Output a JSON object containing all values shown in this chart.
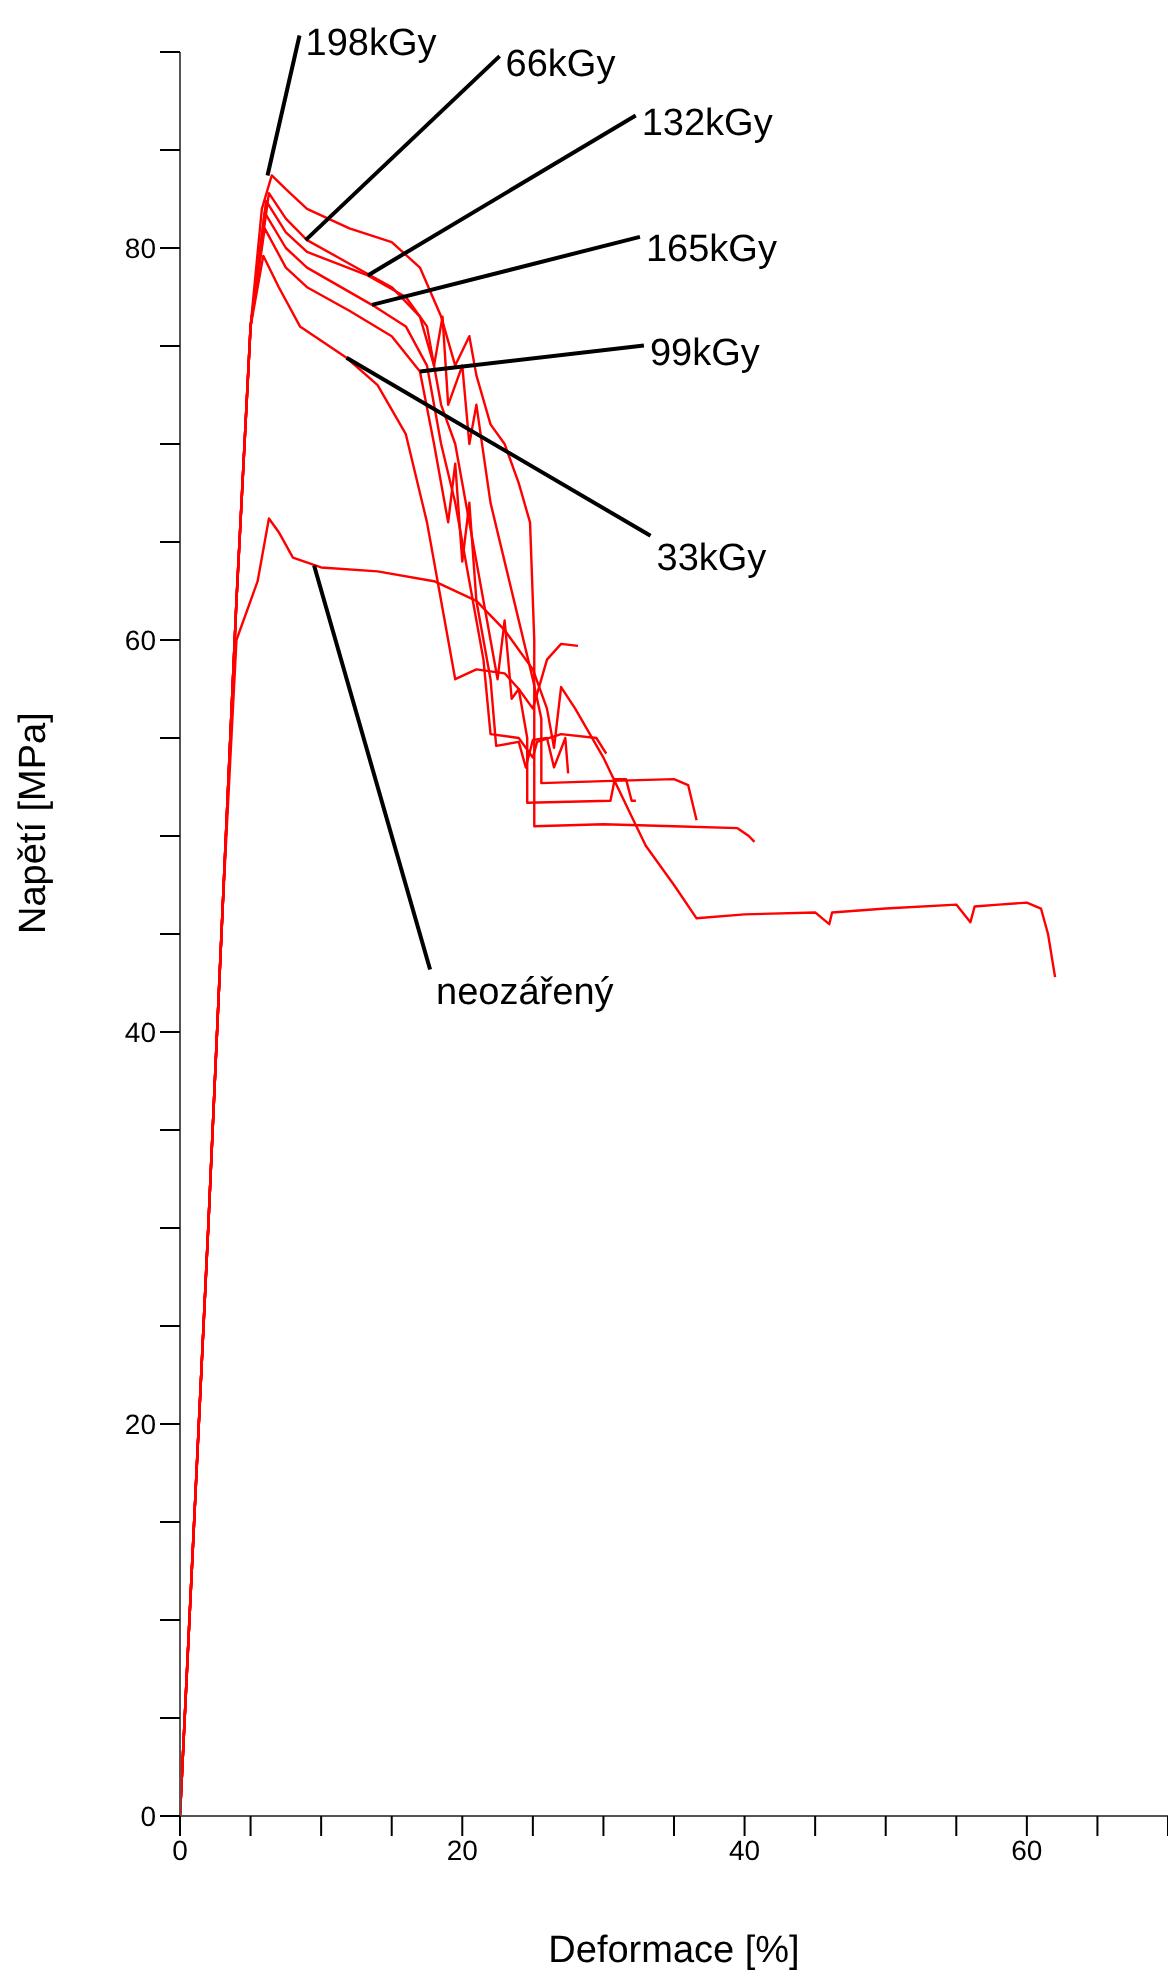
{
  "chart_data": {
    "type": "line",
    "xlabel": "Deformace [%]",
    "ylabel": "Napětí [MPa]",
    "xlim": [
      0,
      70
    ],
    "ylim": [
      0,
      90
    ],
    "xticks": [
      0,
      {
        "value": 5,
        "label": null
      },
      {
        "value": 10,
        "label": null
      },
      {
        "value": 15,
        "label": null
      },
      20,
      {
        "value": 25,
        "label": null
      },
      {
        "value": 30,
        "label": null
      },
      {
        "value": 35,
        "label": null
      },
      40,
      {
        "value": 45,
        "label": null
      },
      {
        "value": 50,
        "label": null
      },
      {
        "value": 55,
        "label": null
      },
      60,
      {
        "value": 65,
        "label": null
      },
      {
        "value": 70,
        "label": null
      }
    ],
    "yticks": [
      0,
      {
        "value": 5,
        "label": null
      },
      {
        "value": 10,
        "label": null
      },
      {
        "value": 15,
        "label": null
      },
      20,
      {
        "value": 25,
        "label": null
      },
      {
        "value": 30,
        "label": null
      },
      {
        "value": 35,
        "label": null
      },
      40,
      {
        "value": 45,
        "label": null
      },
      {
        "value": 50,
        "label": null
      },
      {
        "value": 55,
        "label": null
      },
      60,
      {
        "value": 65,
        "label": null
      },
      {
        "value": 70,
        "label": null
      },
      {
        "value": 75,
        "label": null
      },
      80,
      {
        "value": 85,
        "label": null
      },
      {
        "value": 90,
        "label": null
      }
    ],
    "grid": false,
    "series": [
      {
        "color": "#ff0000",
        "x": [
          0,
          1,
          2,
          3,
          4,
          5,
          5.8,
          6.5,
          7.5,
          9,
          12,
          15,
          17,
          18.5,
          19.5,
          20.5,
          21,
          22,
          23,
          24,
          24.8,
          25.1,
          25.1,
          30,
          35,
          39.5,
          40.3,
          40.7
        ],
        "values": [
          0,
          15,
          30,
          46,
          62,
          76,
          82,
          83.7,
          83,
          82,
          81,
          80.3,
          79,
          76.5,
          74,
          75.5,
          73.5,
          71,
          70,
          68,
          66,
          60,
          50.5,
          50.6,
          50.5,
          50.4,
          50,
          49.7
        ]
      },
      {
        "color": "#ff0000",
        "x": [
          0,
          1,
          2,
          3,
          4,
          5,
          6.3,
          7.5,
          9,
          12,
          15,
          17,
          18,
          18.6,
          19,
          20,
          20.5,
          21,
          22,
          23,
          24,
          25,
          25.6,
          25.6,
          30,
          35,
          36,
          36.6
        ],
        "values": [
          0,
          15,
          30,
          46,
          62,
          76,
          82.8,
          81.5,
          80.4,
          79.2,
          78,
          76.5,
          74,
          76.5,
          72,
          74,
          70,
          72,
          67,
          64,
          61,
          58,
          56,
          52.7,
          52.8,
          52.9,
          52.6,
          50.8
        ]
      },
      {
        "color": "#ff0000",
        "x": [
          0,
          1,
          2,
          3,
          4,
          5,
          6.1,
          7.5,
          9,
          13.3,
          16,
          17.5,
          18.5,
          19.5,
          20.5,
          21.5,
          22.5,
          23,
          23.5,
          24,
          24.6,
          24.6,
          30.5,
          30.8,
          31.6,
          32,
          32.3
        ],
        "values": [
          0,
          15,
          30,
          46,
          62,
          76,
          82.4,
          80.8,
          79.8,
          78.6,
          77.5,
          76,
          72,
          70,
          66,
          62,
          58,
          61,
          57,
          57.5,
          55,
          51.7,
          51.8,
          52.9,
          52.9,
          51.8,
          51.8
        ]
      },
      {
        "color": "#ff0000",
        "x": [
          0,
          1,
          2,
          3,
          4,
          5,
          6,
          7.5,
          9,
          13.6,
          16,
          17.5,
          18.5,
          19.5,
          20.5,
          21.5,
          22,
          24,
          25,
          25.3,
          27,
          29.5,
          30.2
        ],
        "values": [
          0,
          15,
          30,
          46,
          62,
          76,
          81.8,
          80,
          79,
          77.1,
          76,
          74,
          70,
          67,
          63,
          59,
          55.2,
          55,
          54,
          54.8,
          55.2,
          55,
          54.2
        ]
      },
      {
        "color": "#ff0000",
        "x": [
          0,
          1,
          2,
          3,
          4,
          5,
          6,
          7.5,
          9,
          12,
          15,
          17,
          18,
          19,
          19.5,
          20,
          20.5,
          21,
          22,
          22.4,
          24,
          24.5,
          25,
          26,
          26.5,
          27.3,
          27.5
        ],
        "values": [
          0,
          15,
          30,
          46,
          62,
          76,
          81,
          79,
          78,
          76.8,
          75.5,
          73.7,
          70,
          66,
          69,
          64,
          67,
          62,
          58,
          54.6,
          54.8,
          53.5,
          54.9,
          55,
          53.5,
          55,
          53.2
        ]
      },
      {
        "color": "#ff0000",
        "x": [
          0,
          1,
          2,
          3,
          4,
          5,
          5.9,
          7,
          8.5,
          11.8,
          14,
          16,
          17.5,
          18.5,
          19.5,
          21,
          23,
          24,
          25,
          26,
          27,
          28.2
        ],
        "values": [
          0,
          15,
          30,
          46,
          62,
          76,
          79.6,
          78,
          76,
          74.4,
          73,
          70.5,
          66,
          62,
          58,
          58.5,
          58.3,
          57.5,
          56.5,
          59,
          59.8,
          59.7
        ]
      },
      {
        "color": "#ff0000",
        "x": [
          0,
          1,
          2,
          3,
          4,
          5.5,
          6.3,
          7,
          8,
          10,
          14,
          18,
          21,
          23,
          25,
          26,
          26.5,
          27,
          28,
          30,
          32,
          33,
          35,
          36.6,
          40,
          45,
          46,
          46.2,
          50,
          55,
          56,
          56.3,
          58,
          60,
          61,
          61.5,
          62
        ],
        "values": [
          0,
          15,
          30,
          46,
          60,
          63,
          66.2,
          65.5,
          64.2,
          63.7,
          63.5,
          63,
          62,
          60.5,
          58.5,
          56.5,
          54.5,
          57.6,
          56.5,
          54,
          51,
          49.5,
          47.5,
          45.8,
          46,
          46.1,
          45.5,
          46.1,
          46.3,
          46.5,
          45.6,
          46.4,
          46.5,
          46.6,
          46.3,
          45,
          42.8
        ]
      }
    ],
    "annotations": [
      {
        "text": "198kGy",
        "x": 6.2,
        "y": 83.7
      },
      {
        "text": "66kGy",
        "x": 8.9,
        "y": 80.4
      },
      {
        "text": "132kGy",
        "x": 13.3,
        "y": 78.6
      },
      {
        "text": "165kGy",
        "x": 13.6,
        "y": 77.1
      },
      {
        "text": "99kGy",
        "x": 17.0,
        "y": 73.7
      },
      {
        "text": "33kGy",
        "x": 11.8,
        "y": 74.4
      },
      {
        "text": "neozářený",
        "x": 9.5,
        "y": 63.8
      }
    ]
  }
}
